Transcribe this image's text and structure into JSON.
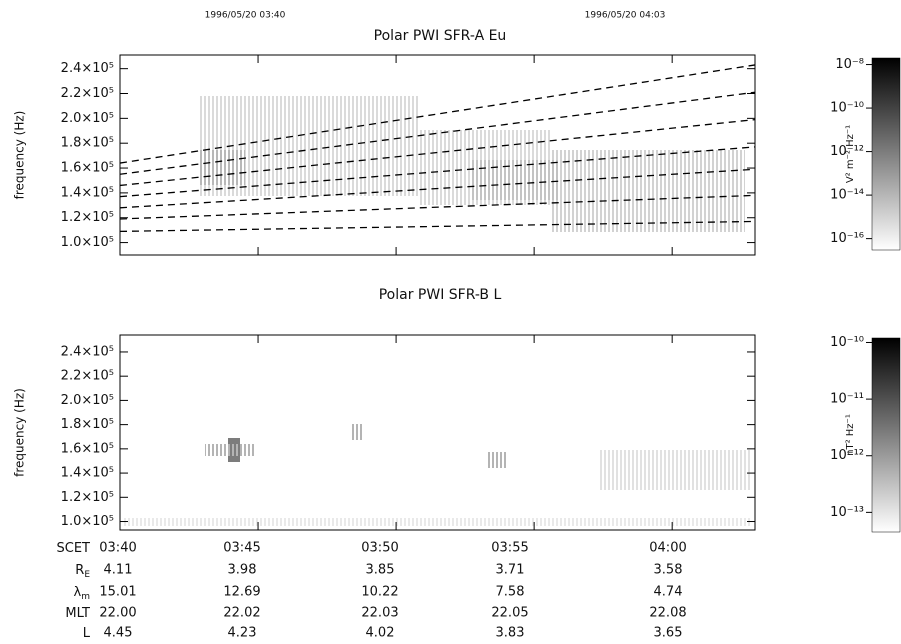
{
  "header": {
    "start": "1996/05/20 03:40",
    "end": "1996/05/20 04:03"
  },
  "chart_data": [
    {
      "type": "spectrogram",
      "title": "Polar PWI SFR-A Eu",
      "y_label": "frequency (Hz)",
      "ylim": [
        90000,
        251000
      ],
      "yticks": [
        {
          "value": 100000,
          "label": "1.0×10⁵"
        },
        {
          "value": 120000,
          "label": "1.2×10⁵"
        },
        {
          "value": 140000,
          "label": "1.4×10⁵"
        },
        {
          "value": 160000,
          "label": "1.6×10⁵"
        },
        {
          "value": 180000,
          "label": "1.8×10⁵"
        },
        {
          "value": 200000,
          "label": "2.0×10⁵"
        },
        {
          "value": 220000,
          "label": "2.2×10⁵"
        },
        {
          "value": 240000,
          "label": "2.4×10⁵"
        }
      ],
      "lines": [
        {
          "values": [
            164000,
            243000
          ]
        },
        {
          "values": [
            155000,
            221000
          ]
        },
        {
          "values": [
            146000,
            199000
          ]
        },
        {
          "values": [
            137000,
            177000
          ]
        },
        {
          "values": [
            128000,
            159000
          ]
        },
        {
          "values": [
            119000,
            138000
          ]
        },
        {
          "values": [
            109000,
            117000
          ]
        }
      ],
      "line_style": "dashed",
      "line_color": "#000000",
      "colorbar": {
        "label": "V² m⁻² Hz⁻¹",
        "scale": "log",
        "lim": [
          3e-17,
          2e-08
        ],
        "ticks": [
          {
            "value": 1e-08,
            "label": "10⁻⁸"
          },
          {
            "value": 1e-10,
            "label": "10⁻¹⁰"
          },
          {
            "value": 1e-12,
            "label": "10⁻¹²"
          },
          {
            "value": 1e-14,
            "label": "10⁻¹⁴"
          },
          {
            "value": 1e-16,
            "label": "10⁻¹⁶"
          }
        ]
      }
    },
    {
      "type": "spectrogram",
      "title": "Polar PWI SFR-B L",
      "y_label": "frequency (Hz)",
      "ylim": [
        93000,
        254000
      ],
      "yticks": [
        {
          "value": 100000,
          "label": "1.0×10⁵"
        },
        {
          "value": 120000,
          "label": "1.2×10⁵"
        },
        {
          "value": 140000,
          "label": "1.4×10⁵"
        },
        {
          "value": 160000,
          "label": "1.6×10⁵"
        },
        {
          "value": 180000,
          "label": "1.8×10⁵"
        },
        {
          "value": 200000,
          "label": "2.0×10⁵"
        },
        {
          "value": 220000,
          "label": "2.2×10⁵"
        },
        {
          "value": 240000,
          "label": "2.4×10⁵"
        }
      ],
      "colorbar": {
        "label": "nT² Hz⁻¹",
        "scale": "log",
        "lim": [
          4.5e-14,
          1.2e-10
        ],
        "ticks": [
          {
            "value": 1e-10,
            "label": "10⁻¹⁰"
          },
          {
            "value": 1e-11,
            "label": "10⁻¹¹"
          },
          {
            "value": 1e-12,
            "label": "10⁻¹²"
          },
          {
            "value": 1e-13,
            "label": "10⁻¹³"
          }
        ]
      }
    }
  ],
  "ephemeris": {
    "rows": [
      {
        "label": "SCET",
        "values": [
          "03:40",
          "03:45",
          "03:50",
          "03:55",
          "04:00"
        ]
      },
      {
        "label": "R",
        "sub": "E",
        "values": [
          "4.11",
          "3.98",
          "3.85",
          "3.71",
          "3.58"
        ]
      },
      {
        "label": "λ",
        "sub": "m",
        "values": [
          "15.01",
          "12.69",
          "10.22",
          "7.58",
          "4.74"
        ]
      },
      {
        "label": "MLT",
        "values": [
          "22.00",
          "22.02",
          "22.03",
          "22.05",
          "22.08"
        ]
      },
      {
        "label": "L",
        "values": [
          "4.45",
          "4.23",
          "4.02",
          "3.83",
          "3.65"
        ]
      }
    ]
  }
}
